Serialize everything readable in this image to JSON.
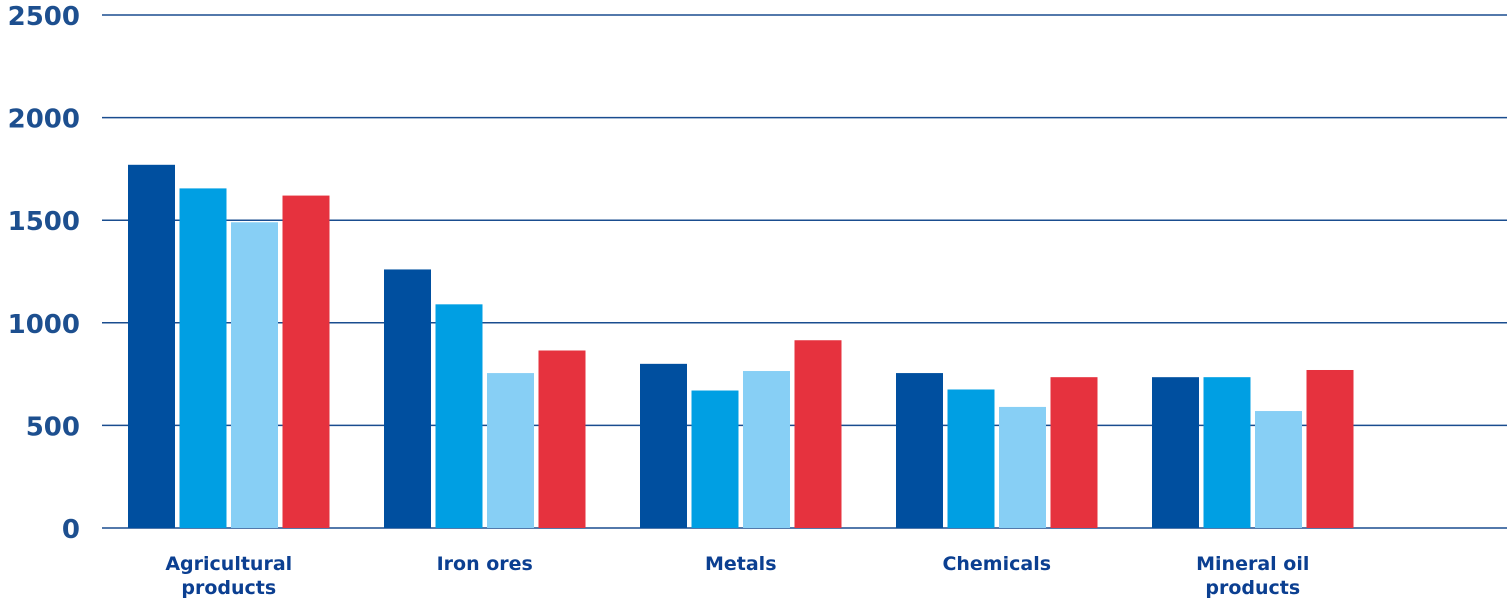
{
  "chart_data": {
    "type": "bar",
    "categories": [
      "Agricultural products",
      "Iron ores",
      "Metals",
      "Chemicals",
      "Mineral oil products"
    ],
    "series": [
      {
        "color": "#004f9f",
        "values": [
          1770,
          1260,
          800,
          755,
          735
        ]
      },
      {
        "color": "#009fe3",
        "values": [
          1655,
          1090,
          670,
          675,
          735
        ]
      },
      {
        "color": "#87cff5",
        "values": [
          1490,
          755,
          765,
          590,
          570
        ]
      },
      {
        "color": "#e6323e",
        "values": [
          1620,
          865,
          915,
          735,
          770
        ]
      }
    ],
    "ylim": [
      0,
      2500
    ],
    "yticks": [
      "0",
      "500",
      "1000",
      "1500",
      "2000",
      "2500"
    ],
    "grid": true,
    "title": "",
    "xlabel": "",
    "ylabel": ""
  }
}
